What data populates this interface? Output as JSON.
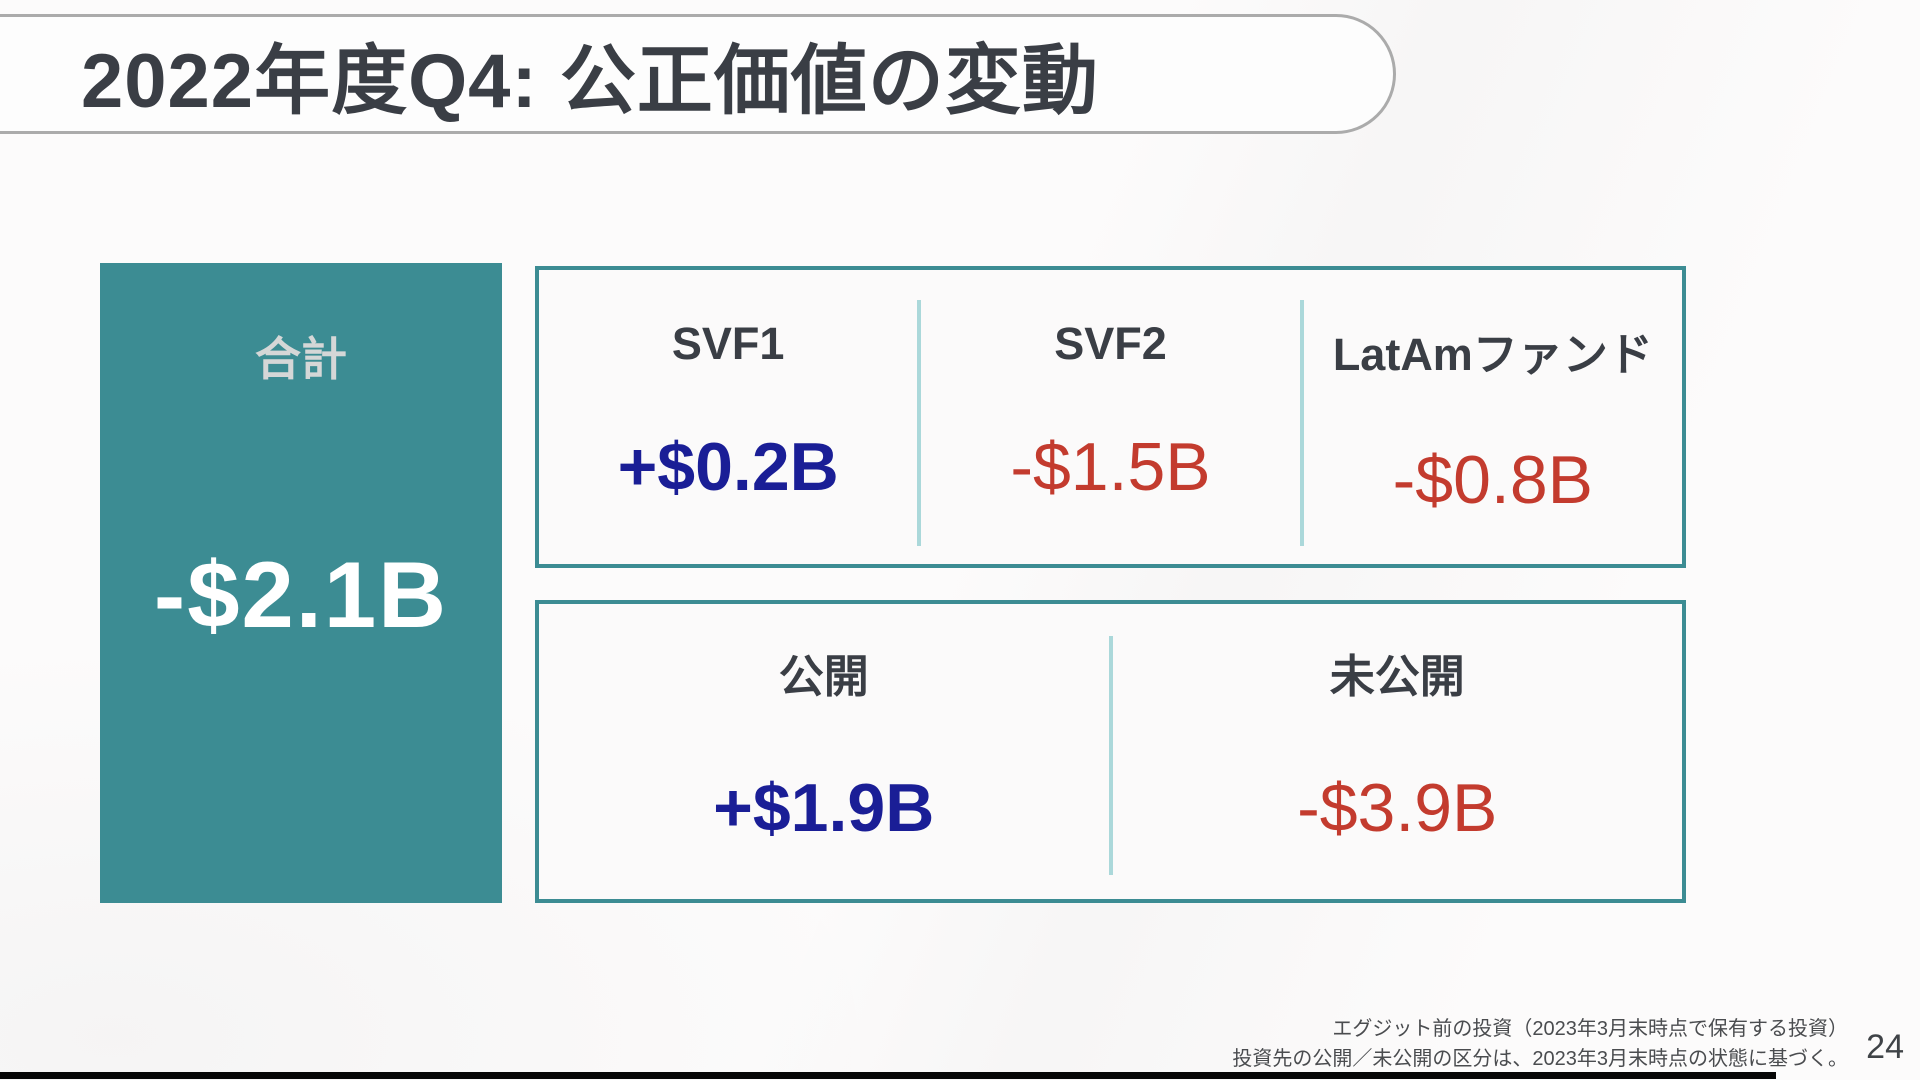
{
  "slide": {
    "title": "2022年度Q4: 公正価値の変動",
    "page_number": "24"
  },
  "total_card": {
    "label": "合計",
    "value": "-$2.1B"
  },
  "funds_box": {
    "columns": [
      {
        "label": "SVF1",
        "value": "+$0.2B",
        "direction": "positive"
      },
      {
        "label": "SVF2",
        "value": "-$1.5B",
        "direction": "negative"
      },
      {
        "label": "LatAmファンド",
        "value": "-$0.8B",
        "direction": "negative"
      }
    ]
  },
  "visibility_box": {
    "columns": [
      {
        "label": "公開",
        "value": "+$1.9B",
        "direction": "positive"
      },
      {
        "label": "未公開",
        "value": "-$3.9B",
        "direction": "negative"
      }
    ]
  },
  "footnote": {
    "line1": "エグジット前の投資（2023年3月末時点で保有する投資）",
    "line2": "投資先の公開／未公開の区分は、2023年3月末時点の状態に基づく。"
  },
  "colors": {
    "teal": "#3C8C93",
    "divider_teal": "#ABD8DA",
    "positive_navy": "#1A1E96",
    "negative_red": "#C33B2E",
    "text_dark": "#3A3E45",
    "title_border_gray": "#ABABAB"
  }
}
